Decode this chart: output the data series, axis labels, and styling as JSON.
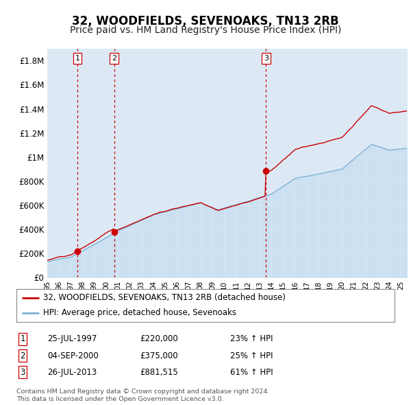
{
  "title": "32, WOODFIELDS, SEVENOAKS, TN13 2RB",
  "subtitle": "Price paid vs. HM Land Registry's House Price Index (HPI)",
  "ylabel_ticks": [
    "£0",
    "£200K",
    "£400K",
    "£600K",
    "£800K",
    "£1M",
    "£1.2M",
    "£1.4M",
    "£1.6M",
    "£1.8M"
  ],
  "ytick_values": [
    0,
    200000,
    400000,
    600000,
    800000,
    1000000,
    1200000,
    1400000,
    1600000,
    1800000
  ],
  "ylim": [
    0,
    1900000
  ],
  "xlim_start": 1995.0,
  "xlim_end": 2025.5,
  "plot_bg_color": "#dce9f5",
  "grid_color": "#ffffff",
  "title_fontsize": 12,
  "subtitle_fontsize": 10,
  "purchases": [
    {
      "date_num": 1997.56,
      "price": 220000,
      "label": "1"
    },
    {
      "date_num": 2000.67,
      "price": 375000,
      "label": "2"
    },
    {
      "date_num": 2013.56,
      "price": 881515,
      "label": "3"
    }
  ],
  "legend_line1": "32, WOODFIELDS, SEVENOAKS, TN13 2RB (detached house)",
  "legend_line2": "HPI: Average price, detached house, Sevenoaks",
  "table_rows": [
    {
      "num": "1",
      "date": "25-JUL-1997",
      "price": "£220,000",
      "change": "23% ↑ HPI"
    },
    {
      "num": "2",
      "date": "04-SEP-2000",
      "price": "£375,000",
      "change": "25% ↑ HPI"
    },
    {
      "num": "3",
      "date": "26-JUL-2013",
      "price": "£881,515",
      "change": "61% ↑ HPI"
    }
  ],
  "footer": "Contains HM Land Registry data © Crown copyright and database right 2024.\nThis data is licensed under the Open Government Licence v3.0.",
  "hpi_color": "#7ab0d4",
  "price_color": "#cc0000",
  "vline_color": "#cc0000",
  "hpi_fill_color": "#c5ddf0"
}
